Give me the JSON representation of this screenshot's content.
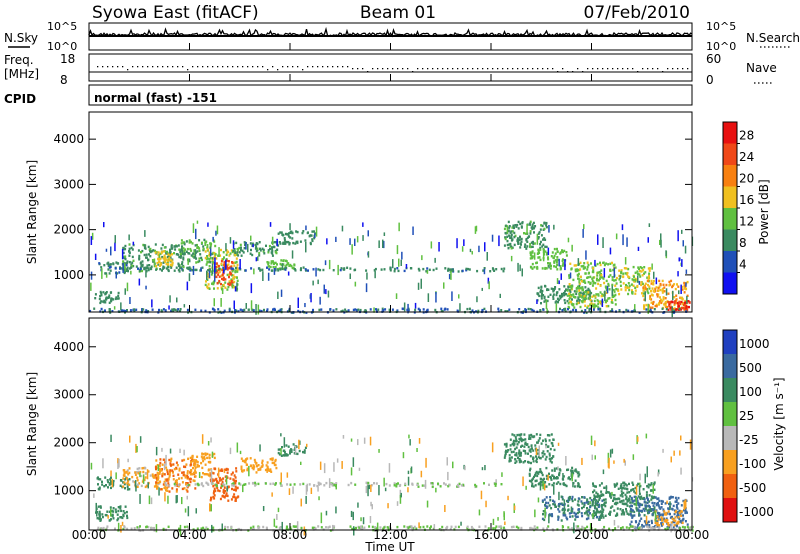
{
  "header": {
    "station": "Syowa East (fitACF)",
    "beam": "Beam 01",
    "date": "07/Feb/2010"
  },
  "noise_panel": {
    "left_label": "N.Sky",
    "right_label": "N.Search",
    "left_ticks": [
      "10^5",
      "10^0"
    ],
    "right_ticks": [
      "10^5",
      "10^0"
    ]
  },
  "freq_panel": {
    "left_label_line1": "Freq.",
    "left_label_line2": "[MHz]",
    "right_label": "Nave",
    "left_ticks": [
      "18",
      "8"
    ],
    "right_ticks": [
      "60",
      "0"
    ]
  },
  "cpid": {
    "label": "CPID",
    "value": "normal (fast) -151"
  },
  "power_panel": {
    "ylabel": "Slant Range [km]",
    "yticks": [
      "4000",
      "3000",
      "2000",
      "1000"
    ],
    "colorbar_label": "Power [dB]",
    "colorbar_ticks": [
      "28",
      "24",
      "20",
      "16",
      "12",
      "8",
      "4"
    ],
    "colors": [
      "#e81010",
      "#f04818",
      "#f88010",
      "#f0c020",
      "#60c040",
      "#3a8a60",
      "#2050b8",
      "#1010f0"
    ]
  },
  "velocity_panel": {
    "ylabel": "Slant Range [km]",
    "yticks": [
      "4000",
      "3000",
      "2000",
      "1000"
    ],
    "colorbar_label": "Velocity [m s⁻¹]",
    "colorbar_ticks": [
      "1000",
      "500",
      "100",
      "25",
      "-25",
      "-100",
      "-500",
      "-1000"
    ],
    "colors": [
      "#2040c0",
      "#3a6aa0",
      "#3a8a60",
      "#60c040",
      "#b8b8b8",
      "#f8a020",
      "#f06010",
      "#e01010"
    ]
  },
  "x_axis": {
    "ticks": [
      "00:00",
      "04:00",
      "08:00",
      "12:00",
      "16:00",
      "20:00",
      "00:00"
    ],
    "label": "Time UT"
  },
  "chart_data": [
    {
      "type": "heatmap",
      "title": "Power",
      "xlabel": "Time UT",
      "ylabel": "Slant Range [km]",
      "xlim": [
        0,
        24
      ],
      "ylim": [
        180,
        4600
      ],
      "color_scale_ticks": [
        4,
        8,
        12,
        16,
        20,
        24,
        28
      ],
      "blobs": [
        {
          "t0": 0.2,
          "t1": 1.2,
          "r0": 400,
          "r1": 650,
          "value": 8
        },
        {
          "t0": 0.3,
          "t1": 1.5,
          "r0": 1050,
          "r1": 1300,
          "value": 7
        },
        {
          "t0": 1.3,
          "t1": 3.8,
          "r0": 1100,
          "r1": 1700,
          "value": 9
        },
        {
          "t0": 2.6,
          "t1": 3.3,
          "r0": 1200,
          "r1": 1550,
          "value": 16
        },
        {
          "t0": 3.6,
          "t1": 5.0,
          "r0": 1300,
          "r1": 1800,
          "value": 10
        },
        {
          "t0": 4.6,
          "t1": 5.9,
          "r0": 700,
          "r1": 1600,
          "value": 14
        },
        {
          "t0": 5.0,
          "t1": 5.7,
          "r0": 800,
          "r1": 1350,
          "value": 24
        },
        {
          "t0": 5.7,
          "t1": 7.5,
          "r0": 1450,
          "r1": 1750,
          "value": 9
        },
        {
          "t0": 7.0,
          "t1": 8.2,
          "r0": 1150,
          "r1": 1350,
          "value": 12
        },
        {
          "t0": 7.5,
          "t1": 9.0,
          "r0": 1700,
          "r1": 2000,
          "value": 8
        },
        {
          "t0": 1.0,
          "t1": 12.0,
          "r0": 1120,
          "r1": 1190,
          "value": 7
        },
        {
          "t0": 12.0,
          "t1": 16.5,
          "r0": 1100,
          "r1": 1180,
          "value": 7
        },
        {
          "t0": 16.5,
          "t1": 18.2,
          "r0": 1600,
          "r1": 2200,
          "value": 9
        },
        {
          "t0": 17.5,
          "t1": 19.0,
          "r0": 1150,
          "r1": 1600,
          "value": 12
        },
        {
          "t0": 17.8,
          "t1": 20.0,
          "r0": 400,
          "r1": 800,
          "value": 8
        },
        {
          "t0": 19.0,
          "t1": 21.0,
          "r0": 300,
          "r1": 1300,
          "value": 13
        },
        {
          "t0": 21.0,
          "t1": 22.3,
          "r0": 600,
          "r1": 1200,
          "value": 14
        },
        {
          "t0": 22.0,
          "t1": 23.8,
          "r0": 250,
          "r1": 900,
          "value": 18
        },
        {
          "t0": 23.0,
          "t1": 23.9,
          "r0": 250,
          "r1": 450,
          "value": 26
        },
        {
          "t0": 0.0,
          "t1": 24.0,
          "r0": 190,
          "r1": 280,
          "value": 6
        }
      ]
    },
    {
      "type": "heatmap",
      "title": "Velocity",
      "xlabel": "Time UT",
      "ylabel": "Slant Range [km]",
      "xlim": [
        0,
        24
      ],
      "ylim": [
        180,
        4600
      ],
      "color_scale_ticks": [
        -1000,
        -500,
        -100,
        -25,
        25,
        100,
        500,
        1000
      ],
      "blobs": [
        {
          "t0": 0.2,
          "t1": 1.5,
          "r0": 400,
          "r1": 700,
          "value": 150
        },
        {
          "t0": 0.3,
          "t1": 1.6,
          "r0": 1050,
          "r1": 1300,
          "value": 120
        },
        {
          "t0": 1.3,
          "t1": 2.8,
          "r0": 1100,
          "r1": 1500,
          "value": -80
        },
        {
          "t0": 2.6,
          "t1": 4.2,
          "r0": 1000,
          "r1": 1700,
          "value": -300
        },
        {
          "t0": 4.0,
          "t1": 5.0,
          "r0": 1300,
          "r1": 1800,
          "value": -200
        },
        {
          "t0": 4.8,
          "t1": 5.9,
          "r0": 800,
          "r1": 1500,
          "value": -400
        },
        {
          "t0": 5.9,
          "t1": 7.5,
          "r0": 1400,
          "r1": 1700,
          "value": -250
        },
        {
          "t0": 7.5,
          "t1": 8.6,
          "r0": 1750,
          "r1": 2000,
          "value": 200
        },
        {
          "t0": 3.0,
          "t1": 12.0,
          "r0": 1120,
          "r1": 1190,
          "value": 0
        },
        {
          "t0": 12.0,
          "t1": 16.5,
          "r0": 1100,
          "r1": 1180,
          "value": 0
        },
        {
          "t0": 16.5,
          "t1": 18.5,
          "r0": 1600,
          "r1": 2200,
          "value": 200
        },
        {
          "t0": 17.5,
          "t1": 19.5,
          "r0": 1100,
          "r1": 1500,
          "value": 150
        },
        {
          "t0": 18.0,
          "t1": 20.5,
          "r0": 400,
          "r1": 900,
          "value": 300
        },
        {
          "t0": 20.0,
          "t1": 22.5,
          "r0": 500,
          "r1": 1200,
          "value": 250
        },
        {
          "t0": 21.5,
          "t1": 23.8,
          "r0": 250,
          "r1": 900,
          "value": 400
        },
        {
          "t0": 22.5,
          "t1": 23.6,
          "r0": 300,
          "r1": 600,
          "value": -200
        },
        {
          "t0": 0.0,
          "t1": 24.0,
          "r0": 190,
          "r1": 280,
          "value": 0
        }
      ]
    }
  ]
}
